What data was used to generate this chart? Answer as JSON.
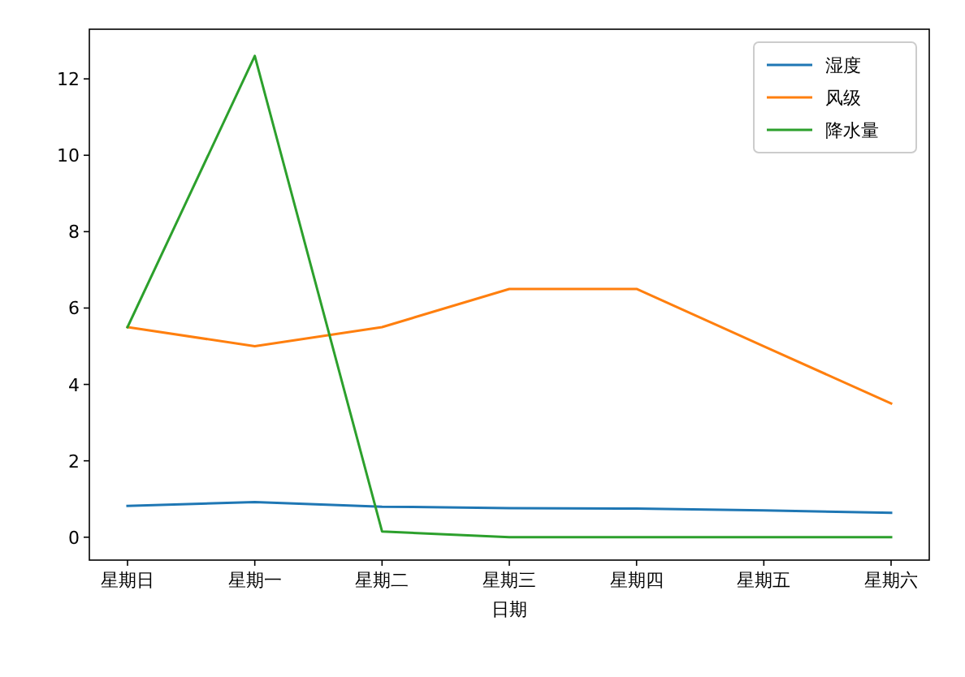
{
  "chart_data": {
    "type": "line",
    "xlabel": "日期",
    "categories": [
      "星期日",
      "星期一",
      "星期二",
      "星期三",
      "星期四",
      "星期五",
      "星期六"
    ],
    "series": [
      {
        "name": "湿度",
        "color": "#1f77b4",
        "values": [
          0.82,
          0.92,
          0.8,
          0.76,
          0.75,
          0.7,
          0.64
        ]
      },
      {
        "name": "风级",
        "color": "#ff7f0e",
        "values": [
          5.5,
          5.0,
          5.5,
          6.5,
          6.5,
          5.0,
          3.5
        ]
      },
      {
        "name": "降水量",
        "color": "#2ca02c",
        "values": [
          5.5,
          12.6,
          0.15,
          0,
          0,
          0,
          0
        ]
      }
    ],
    "ylim": [
      -0.6,
      13.3
    ],
    "yticks": [
      0,
      2,
      4,
      6,
      8,
      10,
      12
    ],
    "grid": false,
    "legend": "top right",
    "marker": "none",
    "line_style": "solid"
  }
}
